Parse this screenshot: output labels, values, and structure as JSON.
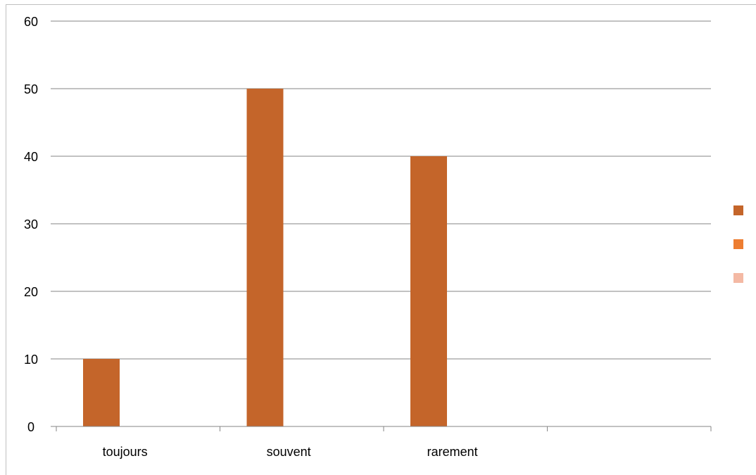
{
  "chart_data": {
    "type": "bar",
    "categories": [
      "toujours",
      "souvent",
      "rarement",
      ""
    ],
    "series": [
      {
        "values": [
          10,
          50,
          40,
          null
        ],
        "color": "#C4652A"
      },
      {
        "values": [
          null,
          null,
          null,
          null
        ],
        "color": "#ED7D31"
      },
      {
        "values": [
          null,
          null,
          null,
          null
        ],
        "color": "#F4B9A4"
      }
    ],
    "y_ticks": [
      "0",
      "10",
      "20",
      "30",
      "40",
      "50",
      "60"
    ],
    "ylim": [
      0,
      60
    ],
    "title": "",
    "xlabel": "",
    "ylabel": "",
    "grid": true,
    "legend_position": "right"
  },
  "colors": {
    "gridline": "#868686",
    "axis": "#868686",
    "frame": "#bfbfbf"
  }
}
